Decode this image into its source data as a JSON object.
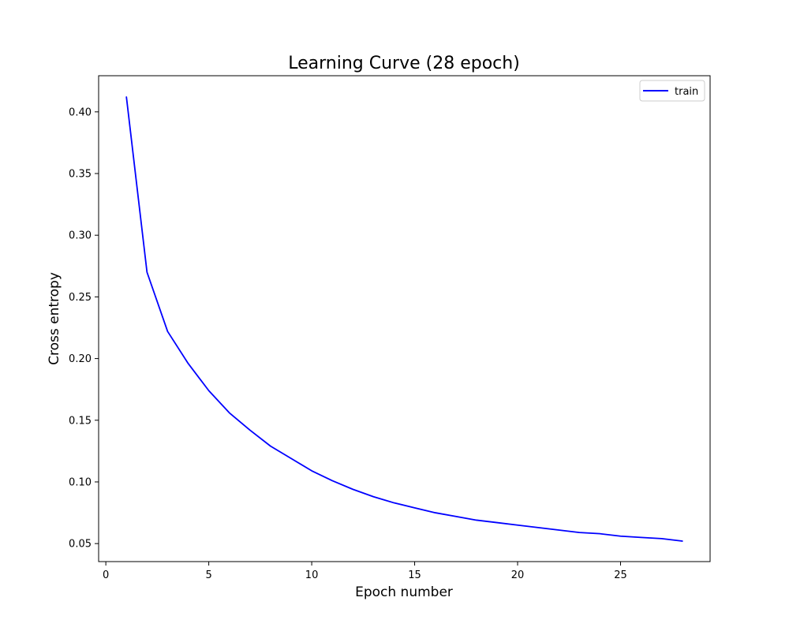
{
  "chart_data": {
    "type": "line",
    "title": "Learning Curve (28 epoch)",
    "xlabel": "Epoch number",
    "ylabel": "Cross entropy",
    "xlim": [
      -0.35,
      29.35
    ],
    "ylim": [
      0.0354,
      0.4293
    ],
    "x_ticks": [
      0,
      5,
      10,
      15,
      20,
      25
    ],
    "x_tick_labels": [
      "0",
      "5",
      "10",
      "15",
      "20",
      "25"
    ],
    "y_ticks": [
      0.05,
      0.1,
      0.15,
      0.2,
      0.25,
      0.3,
      0.35,
      0.4
    ],
    "y_tick_labels": [
      "0.05",
      "0.10",
      "0.15",
      "0.20",
      "0.25",
      "0.30",
      "0.35",
      "0.40"
    ],
    "grid": false,
    "legend_position": "top-right",
    "series": [
      {
        "name": "train",
        "color": "#0000ff",
        "x": [
          1,
          2,
          3,
          4,
          5,
          6,
          7,
          8,
          9,
          10,
          11,
          12,
          13,
          14,
          15,
          16,
          17,
          18,
          19,
          20,
          21,
          22,
          23,
          24,
          25,
          26,
          27,
          28
        ],
        "y": [
          0.412,
          0.27,
          0.222,
          0.196,
          0.174,
          0.156,
          0.142,
          0.129,
          0.119,
          0.109,
          0.101,
          0.094,
          0.088,
          0.083,
          0.079,
          0.075,
          0.072,
          0.069,
          0.067,
          0.065,
          0.063,
          0.061,
          0.059,
          0.058,
          0.056,
          0.055,
          0.054,
          0.052
        ]
      }
    ]
  }
}
